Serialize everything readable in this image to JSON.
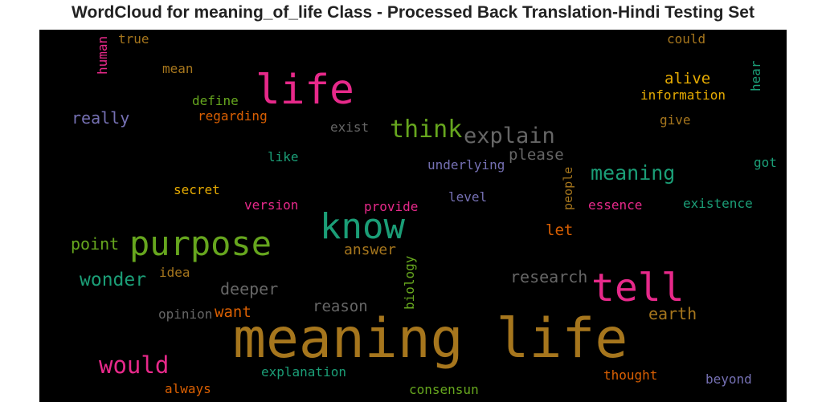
{
  "title": "WordCloud for meaning_of_life Class - Processed Back Translation-Hindi Testing Set",
  "colors": {
    "brown": "#a6761d",
    "pink": "#e7298a",
    "green": "#66a61e",
    "teal": "#1b9e77",
    "orange": "#d95f02",
    "gold": "#e6ab02",
    "purple": "#7570b3",
    "gray": "#666666"
  },
  "words": [
    {
      "text": "meaning life",
      "color": "brown"
    },
    {
      "text": "life",
      "color": "pink"
    },
    {
      "text": "know",
      "color": "teal"
    },
    {
      "text": "purpose",
      "color": "green"
    },
    {
      "text": "tell",
      "color": "pink"
    },
    {
      "text": "think",
      "color": "green"
    },
    {
      "text": "explain",
      "color": "gray"
    },
    {
      "text": "meaning",
      "color": "teal"
    },
    {
      "text": "would",
      "color": "pink"
    },
    {
      "text": "wonder",
      "color": "teal"
    },
    {
      "text": "deeper",
      "color": "gray"
    },
    {
      "text": "reason",
      "color": "gray"
    },
    {
      "text": "research",
      "color": "gray"
    },
    {
      "text": "earth",
      "color": "brown"
    },
    {
      "text": "please",
      "color": "gray"
    },
    {
      "text": "alive",
      "color": "gold"
    },
    {
      "text": "really",
      "color": "purple"
    },
    {
      "text": "point",
      "color": "green"
    },
    {
      "text": "answer",
      "color": "brown"
    },
    {
      "text": "let",
      "color": "orange"
    },
    {
      "text": "want",
      "color": "orange"
    },
    {
      "text": "information",
      "color": "gold"
    },
    {
      "text": "underlying",
      "color": "purple"
    },
    {
      "text": "existence",
      "color": "teal"
    },
    {
      "text": "essence",
      "color": "pink"
    },
    {
      "text": "thought",
      "color": "orange"
    },
    {
      "text": "explanation",
      "color": "teal"
    },
    {
      "text": "consensun",
      "color": "green"
    },
    {
      "text": "beyond",
      "color": "purple"
    },
    {
      "text": "always",
      "color": "orange"
    },
    {
      "text": "opinion",
      "color": "gray"
    },
    {
      "text": "idea",
      "color": "brown"
    },
    {
      "text": "version",
      "color": "pink"
    },
    {
      "text": "provide",
      "color": "pink"
    },
    {
      "text": "level",
      "color": "purple"
    },
    {
      "text": "secret",
      "color": "gold"
    },
    {
      "text": "like",
      "color": "teal"
    },
    {
      "text": "exist",
      "color": "gray"
    },
    {
      "text": "regarding",
      "color": "orange"
    },
    {
      "text": "define",
      "color": "green"
    },
    {
      "text": "mean",
      "color": "brown"
    },
    {
      "text": "true",
      "color": "brown"
    },
    {
      "text": "could",
      "color": "brown"
    },
    {
      "text": "give",
      "color": "brown"
    },
    {
      "text": "got",
      "color": "teal"
    },
    {
      "text": "human",
      "color": "pink"
    },
    {
      "text": "hear",
      "color": "teal"
    },
    {
      "text": "people",
      "color": "brown"
    },
    {
      "text": "biology",
      "color": "green"
    }
  ]
}
